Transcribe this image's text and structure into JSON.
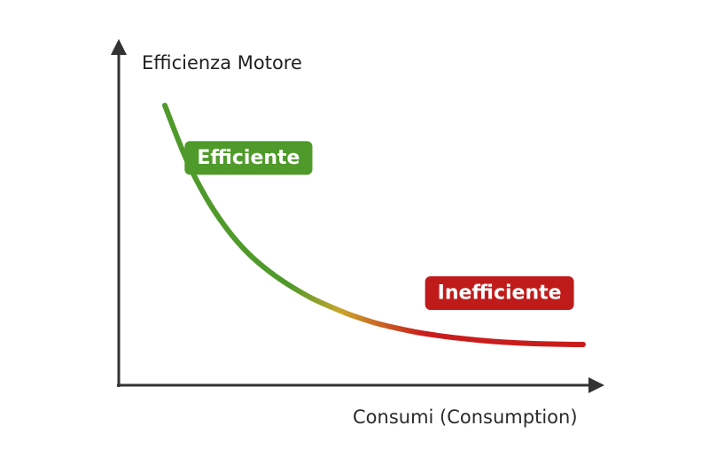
{
  "chart_data": {
    "type": "line",
    "title": "",
    "ylabel": "Efficienza Motore",
    "xlabel": "Consumi (Consumption)",
    "x_ticks": [],
    "y_ticks": [],
    "grid": false,
    "legend": "none",
    "series": [
      {
        "x": [
          0.0,
          0.05,
          0.1,
          0.15,
          0.2,
          0.25,
          0.3,
          0.35,
          0.4,
          0.45,
          0.5,
          0.55,
          0.6,
          0.65,
          0.7,
          0.75,
          0.8,
          0.85,
          0.9,
          0.95,
          1.0
        ],
        "y": [
          1.0,
          0.78,
          0.61,
          0.48,
          0.38,
          0.305,
          0.245,
          0.195,
          0.155,
          0.12,
          0.092,
          0.07,
          0.052,
          0.038,
          0.027,
          0.018,
          0.011,
          0.006,
          0.003,
          0.001,
          0.0
        ]
      }
    ],
    "gradient_colors": {
      "start": "#4f9a2a",
      "middle": "#c9a52c",
      "end": "#c91d1d"
    },
    "annotations": [
      {
        "text": "Efficiente",
        "x": 0.2,
        "y": 0.78,
        "color": "#4f9a2a"
      },
      {
        "text": "Inefficiente",
        "x": 0.8,
        "y": 0.215,
        "color": "#c01b1b"
      }
    ]
  },
  "axis_color": "#333333"
}
